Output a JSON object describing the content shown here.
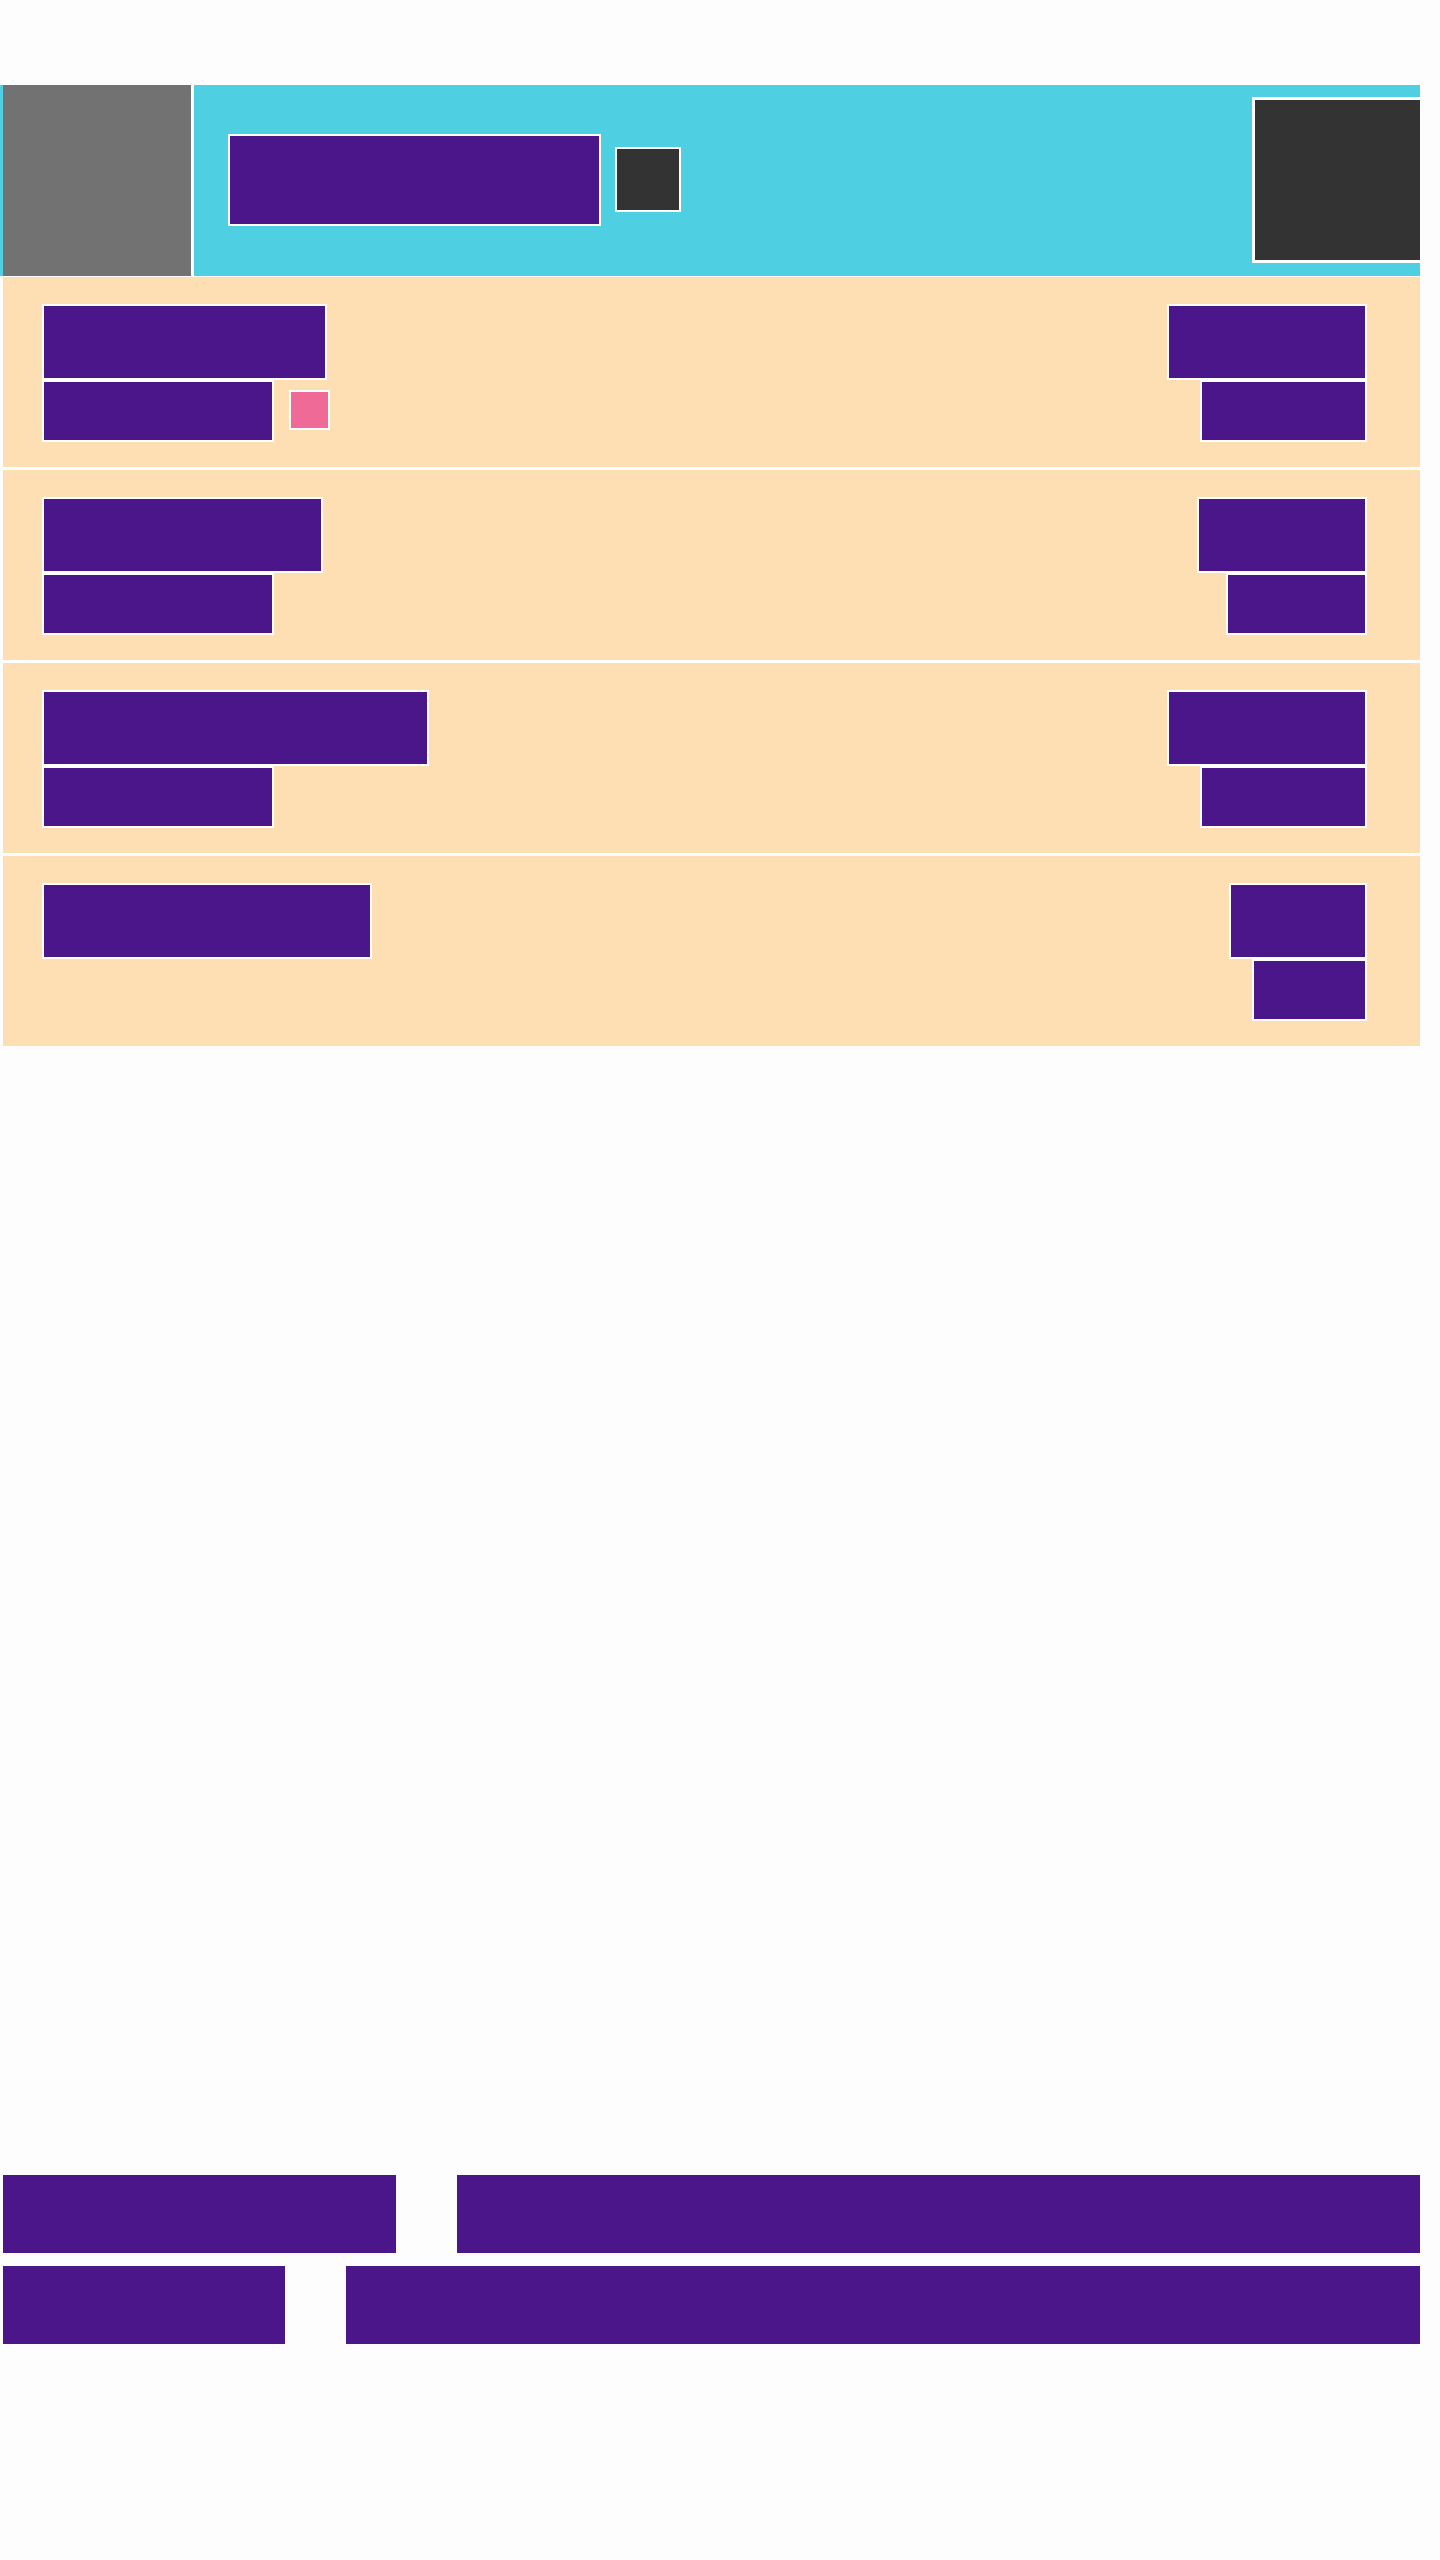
{
  "colors": {
    "page_background": "#fdfdfd",
    "header_background": "#4fd0e2",
    "avatar_placeholder": "#727272",
    "dark_block": "#333333",
    "row_background": "#fddfb3",
    "text_placeholder": "#4a168a",
    "unread_badge": "#f06a98",
    "separator": "#ffffff"
  },
  "header": {
    "avatar_icon": "avatar-placeholder",
    "title_icon": "title-placeholder",
    "status_icon": "small-dark-square",
    "action_icon": "dark-square-button"
  },
  "list": {
    "items": [
      {
        "icon": "row-placeholder",
        "has_unread_badge": true
      },
      {
        "icon": "row-placeholder",
        "has_unread_badge": false
      },
      {
        "icon": "row-placeholder",
        "has_unread_badge": false
      },
      {
        "icon": "row-placeholder",
        "has_unread_badge": false
      }
    ]
  },
  "footer": {
    "rows": [
      {
        "label_icon": "label-placeholder",
        "value_icon": "value-placeholder"
      },
      {
        "label_icon": "label-placeholder",
        "value_icon": "value-placeholder"
      }
    ]
  }
}
